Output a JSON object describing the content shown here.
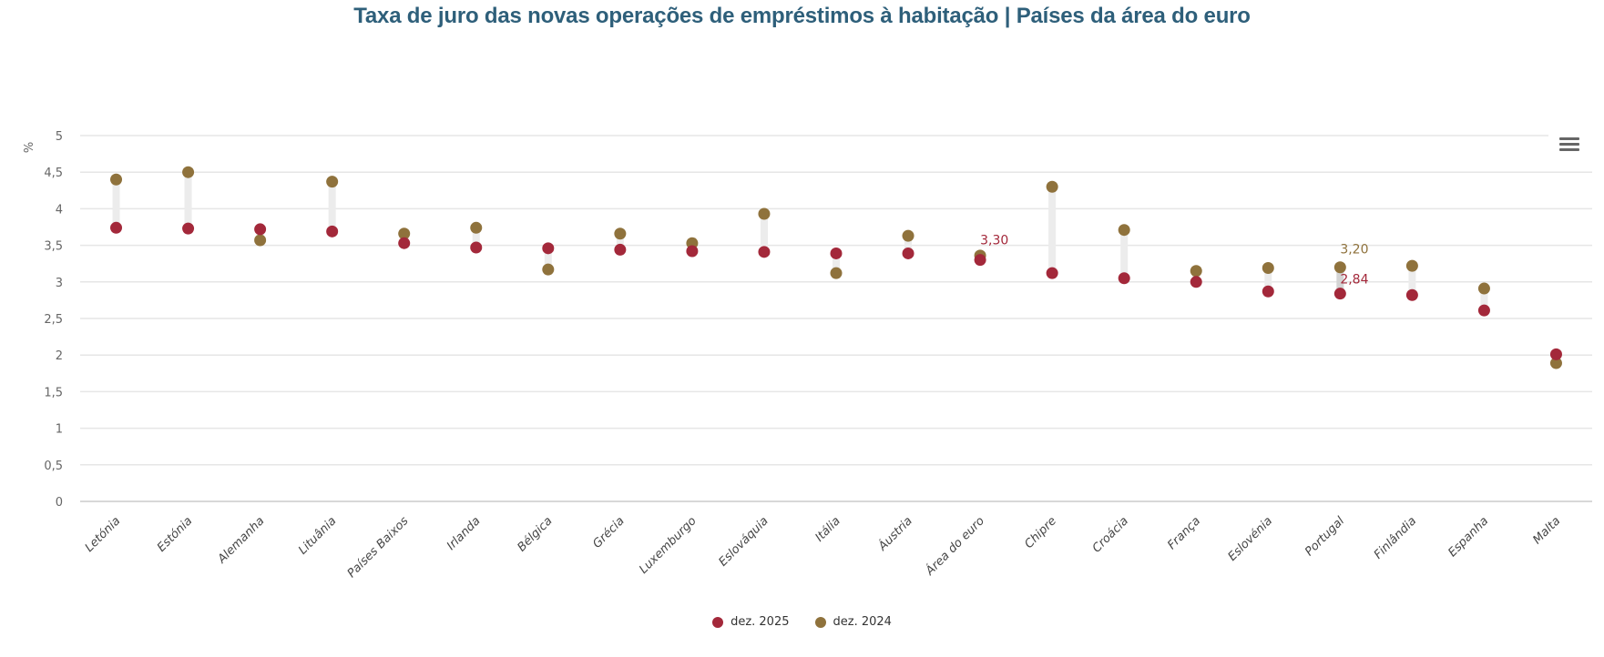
{
  "title": "Taxa de juro das novas operações de empréstimos à habitação | Países da área do euro",
  "menu_icon": "hamburger-menu-icon",
  "chart_data": {
    "type": "dumbbell",
    "title": "Taxa de juro das novas operações de empréstimos à habitação | Países da área do euro",
    "ylabel": "%",
    "xlabel": "",
    "ylim": [
      0,
      5
    ],
    "yticks": [
      0,
      0.5,
      1,
      1.5,
      2,
      2.5,
      3,
      3.5,
      4,
      4.5,
      5
    ],
    "ytick_labels": [
      "0",
      "0,5",
      "1",
      "1,5",
      "2",
      "2,5",
      "3",
      "3,5",
      "4",
      "4,5",
      "5"
    ],
    "grid": true,
    "legend_position": "bottom-center",
    "categories": [
      "Letónia",
      "Estónia",
      "Alemanha",
      "Lituânia",
      "Países Baixos",
      "Irlanda",
      "Bélgica",
      "Grécia",
      "Luxemburgo",
      "Eslováquia",
      "Itália",
      "Áustria",
      "Área do euro",
      "Chipre",
      "Croácia",
      "França",
      "Eslovénia",
      "Portugal",
      "Finlândia",
      "Espanha",
      "Malta"
    ],
    "series": [
      {
        "name": "dez. 2025",
        "color": "#a3283a",
        "values": [
          3.74,
          3.73,
          3.72,
          3.69,
          3.53,
          3.47,
          3.46,
          3.44,
          3.42,
          3.41,
          3.39,
          3.39,
          3.3,
          3.12,
          3.05,
          3.0,
          2.87,
          2.84,
          2.82,
          2.61,
          2.01
        ]
      },
      {
        "name": "dez. 2024",
        "color": "#8f723c",
        "values": [
          4.4,
          4.5,
          3.57,
          4.37,
          3.66,
          3.74,
          3.17,
          3.66,
          3.53,
          3.93,
          3.12,
          3.63,
          3.36,
          4.3,
          3.71,
          3.15,
          3.19,
          3.2,
          3.22,
          2.91,
          1.89
        ]
      }
    ],
    "annotations": [
      {
        "category": "Área do euro",
        "series": "dez. 2025",
        "label": "3,30"
      },
      {
        "category": "Portugal",
        "series": "dez. 2024",
        "label": "3,20"
      },
      {
        "category": "Portugal",
        "series": "dez. 2025",
        "label": "2,84"
      }
    ],
    "connector_color": "#ececec",
    "highlight_connector_color": "#d4d4d4"
  }
}
